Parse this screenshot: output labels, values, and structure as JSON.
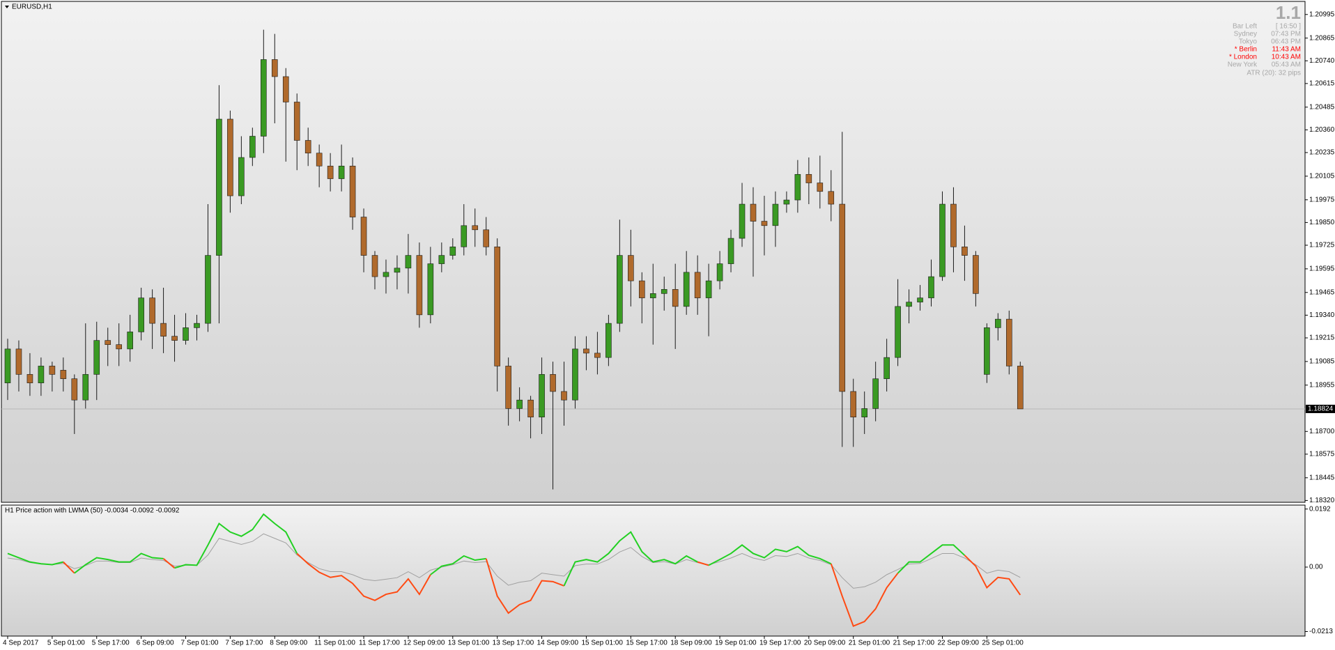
{
  "window": {
    "symbol": "EURUSD,H1",
    "info_panel": {
      "big": "1.1",
      "rows": [
        {
          "label": "Bar Left",
          "value": "[ 16:50 ]",
          "color": "#a8a8a8"
        },
        {
          "label": "Sydney",
          "value": "07:43 PM",
          "color": "#a8a8a8"
        },
        {
          "label": "Tokyo",
          "value": "06:43 PM",
          "color": "#a8a8a8"
        },
        {
          "label": "* Berlin",
          "value": "11:43 AM",
          "color": "#ff0000"
        },
        {
          "label": "* London",
          "value": "10:43 AM",
          "color": "#ff0000"
        },
        {
          "label": "New York",
          "value": "05:43 AM",
          "color": "#a8a8a8"
        }
      ],
      "atr": "ATR (20): 32 pips"
    }
  },
  "chart_data": [
    {
      "type": "candlestick",
      "open": [
        1.18967,
        1.19154,
        1.19014,
        1.18967,
        1.1906,
        1.19037,
        1.1899,
        1.18873,
        1.19014,
        1.19201,
        1.19178,
        1.19154,
        1.19248,
        1.19435,
        1.19295,
        1.19224,
        1.19201,
        1.19271,
        1.19295,
        1.19669,
        1.20419,
        1.19997,
        1.20208,
        1.20325,
        1.20747,
        1.20653,
        1.20513,
        1.20302,
        1.20232,
        1.20161,
        1.20091,
        1.20161,
        1.1988,
        1.19669,
        1.19552,
        1.19576,
        1.19599,
        1.19669,
        1.19342,
        1.19623,
        1.19669,
        1.19716,
        1.19833,
        1.1981,
        1.19716,
        1.1906,
        1.18826,
        1.18873,
        1.18779,
        1.19014,
        1.1892,
        1.18873,
        1.19154,
        1.19131,
        1.19107,
        1.19295,
        1.19669,
        1.19529,
        1.19435,
        1.19459,
        1.19482,
        1.19388,
        1.19576,
        1.19435,
        1.19529,
        1.19623,
        1.19763,
        1.19951,
        1.19857,
        1.19833,
        1.19951,
        1.19974,
        1.20115,
        1.20068,
        1.20021,
        1.19951,
        1.1892,
        1.18779,
        1.18826,
        1.1899,
        1.19107,
        1.19388,
        1.19412,
        1.19435,
        1.19552,
        1.19951,
        1.19716,
        1.19669,
        1.19014,
        1.19271,
        1.19318,
        1.1906
      ],
      "high": [
        1.1921,
        1.19201,
        1.19131,
        1.19107,
        1.19084,
        1.19107,
        1.19014,
        1.19295,
        1.19304,
        1.19271,
        1.19295,
        1.19342,
        1.19491,
        1.19482,
        1.19491,
        1.19342,
        1.19351,
        1.19342,
        1.19951,
        1.20606,
        1.20466,
        1.20325,
        1.20372,
        1.20911,
        1.20888,
        1.207,
        1.2056,
        1.20372,
        1.20279,
        1.20232,
        1.20279,
        1.20208,
        1.19927,
        1.19693,
        1.19646,
        1.19669,
        1.19787,
        1.1974,
        1.19716,
        1.1974,
        1.19763,
        1.19951,
        1.19927,
        1.1988,
        1.19763,
        1.19107,
        1.18943,
        1.18896,
        1.19107,
        1.19084,
        1.19084,
        1.19224,
        1.19224,
        1.19248,
        1.19342,
        1.19866,
        1.1981,
        1.19576,
        1.19623,
        1.19552,
        1.19623,
        1.19693,
        1.19669,
        1.19623,
        1.19693,
        1.1981,
        1.20068,
        1.20044,
        1.19997,
        1.20021,
        1.20021,
        1.20194,
        1.20208,
        1.20218,
        1.20138,
        1.20349,
        1.1899,
        1.1892,
        1.19084,
        1.1921,
        1.19538,
        1.19482,
        1.19506,
        1.19646,
        1.20021,
        1.20044,
        1.19833,
        1.19693,
        1.19295,
        1.19351,
        1.19365,
        1.19084
      ],
      "low": [
        1.18873,
        1.1892,
        1.18896,
        1.18896,
        1.1892,
        1.1892,
        1.18686,
        1.18826,
        1.18873,
        1.1906,
        1.1906,
        1.19084,
        1.19201,
        1.19154,
        1.19131,
        1.19084,
        1.19178,
        1.19201,
        1.19248,
        1.19295,
        1.19904,
        1.19951,
        1.20161,
        1.20232,
        1.20396,
        1.20185,
        1.20138,
        1.20161,
        1.20044,
        1.20021,
        1.20021,
        1.1981,
        1.19576,
        1.19482,
        1.19459,
        1.19482,
        1.19459,
        1.19271,
        1.19295,
        1.19576,
        1.19646,
        1.19669,
        1.19716,
        1.19669,
        1.1892,
        1.18732,
        1.18756,
        1.18662,
        1.18686,
        1.18381,
        1.18732,
        1.18826,
        1.19037,
        1.19014,
        1.1906,
        1.19248,
        1.19388,
        1.19295,
        1.19178,
        1.19365,
        1.19154,
        1.19342,
        1.19342,
        1.19224,
        1.19482,
        1.19576,
        1.19716,
        1.19552,
        1.19669,
        1.19716,
        1.19904,
        1.19904,
        1.19951,
        1.19927,
        1.19857,
        1.18615,
        1.18615,
        1.18686,
        1.18756,
        1.1892,
        1.1906,
        1.19295,
        1.19365,
        1.19388,
        1.19529,
        1.19576,
        1.19529,
        1.19388,
        1.18967,
        1.19201,
        1.19014,
        1.18824
      ],
      "close": [
        1.19154,
        1.19014,
        1.18967,
        1.1906,
        1.19014,
        1.1899,
        1.18873,
        1.19014,
        1.19201,
        1.19178,
        1.19154,
        1.19248,
        1.19435,
        1.19295,
        1.19224,
        1.19201,
        1.19271,
        1.19295,
        1.19669,
        1.20419,
        1.19997,
        1.20208,
        1.20325,
        1.20747,
        1.20653,
        1.20513,
        1.20302,
        1.20232,
        1.20161,
        1.20091,
        1.20161,
        1.1988,
        1.19669,
        1.19552,
        1.19576,
        1.19599,
        1.19669,
        1.19342,
        1.19623,
        1.19669,
        1.19716,
        1.19833,
        1.1981,
        1.19716,
        1.1906,
        1.18826,
        1.18873,
        1.18779,
        1.19014,
        1.1892,
        1.18873,
        1.19154,
        1.19131,
        1.19107,
        1.19295,
        1.19669,
        1.19529,
        1.19435,
        1.19459,
        1.19482,
        1.19388,
        1.19576,
        1.19435,
        1.19529,
        1.19623,
        1.19763,
        1.19951,
        1.19857,
        1.19833,
        1.19951,
        1.19974,
        1.20115,
        1.20068,
        1.20021,
        1.19951,
        1.1892,
        1.18779,
        1.18826,
        1.1899,
        1.19107,
        1.19388,
        1.19412,
        1.19435,
        1.19552,
        1.19951,
        1.19716,
        1.19669,
        1.19459,
        1.19271,
        1.19318,
        1.1906,
        1.18824
      ],
      "up_color": "#3a9a23",
      "down_color": "#b06a2c",
      "wick_color": "#1a1a1a",
      "ylim": [
        1.1831,
        1.21067
      ],
      "yticks": [
        1.20995,
        1.20865,
        {
          "value": 1.2074,
          "label": "1.20740"
        },
        1.20615,
        1.20485,
        {
          "value": 1.2036,
          "label": "1.20360"
        },
        1.20235,
        1.20105,
        1.19975,
        {
          "value": 1.1985,
          "label": "1.19850"
        },
        1.19725,
        1.19595,
        1.19465,
        {
          "value": 1.1934,
          "label": "1.19340"
        },
        1.19215,
        1.19085,
        1.18955,
        {
          "value": 1.187,
          "label": "1.18700"
        },
        1.18575,
        1.18445,
        {
          "value": 1.1832,
          "label": "1.18320"
        }
      ],
      "last_price": 1.18824
    },
    {
      "type": "line",
      "title": "H1 Price action with LWMA (50) -0.0034 -0.0092 -0.0092",
      "categories": [
        "4 Sep 2017",
        null,
        null,
        null,
        "5 Sep 01:00",
        null,
        null,
        null,
        "5 Sep 17:00",
        null,
        null,
        null,
        "6 Sep 09:00",
        null,
        null,
        null,
        "7 Sep 01:00",
        null,
        null,
        null,
        "7 Sep 17:00",
        null,
        null,
        null,
        "8 Sep 09:00",
        null,
        null,
        null,
        "11 Sep 01:00",
        null,
        null,
        null,
        "11 Sep 17:00",
        null,
        null,
        null,
        "12 Sep 09:00",
        null,
        null,
        null,
        "13 Sep 01:00",
        null,
        null,
        null,
        "13 Sep 17:00",
        null,
        null,
        null,
        "14 Sep 09:00",
        null,
        null,
        null,
        "15 Sep 01:00",
        null,
        null,
        null,
        "15 Sep 17:00",
        null,
        null,
        null,
        "18 Sep 09:00",
        null,
        null,
        null,
        "19 Sep 01:00",
        null,
        null,
        null,
        "19 Sep 17:00",
        null,
        null,
        null,
        "20 Sep 09:00",
        null,
        null,
        null,
        "21 Sep 01:00",
        null,
        null,
        null,
        "21 Sep 17:00",
        null,
        null,
        null,
        "22 Sep 09:00",
        null,
        null,
        null,
        "25 Sep 01:00",
        null,
        null,
        null
      ],
      "series": [
        {
          "color": "#22d022",
          "values": [
            0.0045,
            0.0031,
            0.0017,
            0.0011,
            0.0008,
            0.0017,
            -0.002,
            0.0008,
            0.0031,
            0.0025,
            0.0017,
            0.0017,
            0.0045,
            0.0031,
            0.0028,
            -0.0003,
            0.0008,
            0.0006,
            0.0073,
            0.0144,
            0.0116,
            0.0102,
            0.0124,
            0.0175,
            0.0144,
            0.0116,
            0.0045,
            0.0011,
            -0.0017,
            -0.0034,
            -0.0028,
            -0.0054,
            -0.0096,
            -0.011,
            -0.009,
            -0.0082,
            -0.0039,
            -0.009,
            -0.0025,
            0.0003,
            0.0011,
            0.0037,
            0.0023,
            0.0028,
            -0.0096,
            -0.0152,
            -0.0124,
            -0.011,
            -0.0045,
            -0.0048,
            -0.0062,
            0.0017,
            0.0025,
            0.0017,
            0.0045,
            0.0087,
            0.0116,
            0.0051,
            0.0017,
            0.0025,
            0.0011,
            0.0037,
            0.0017,
            0.0006,
            0.0025,
            0.0045,
            0.0073,
            0.0045,
            0.0031,
            0.0059,
            0.0051,
            0.0068,
            0.0039,
            0.0028,
            0.0011,
            -0.0096,
            -0.0195,
            -0.018,
            -0.0138,
            -0.0068,
            -0.002,
            0.0017,
            0.0017,
            0.0045,
            0.0073,
            0.0073,
            0.0039,
            0.0003,
            -0.0068,
            -0.0034,
            -0.0039,
            -0.0092
          ]
        },
        {
          "color": "#a0a0a0",
          "values": [
            0.003,
            0.0025,
            0.0015,
            0.001,
            0.0008,
            0.0012,
            -0.0005,
            0.0005,
            0.002,
            0.002,
            0.0015,
            0.0015,
            0.003,
            0.0025,
            0.0022,
            0.0003,
            0.0006,
            0.0006,
            0.004,
            0.0095,
            0.0085,
            0.0075,
            0.0085,
            0.011,
            0.0095,
            0.008,
            0.004,
            0.0015,
            -0.0005,
            -0.0015,
            -0.0015,
            -0.0025,
            -0.004,
            -0.0045,
            -0.004,
            -0.0035,
            -0.0015,
            -0.0035,
            -0.001,
            0,
            0.0008,
            0.002,
            0.0015,
            0.0018,
            -0.003,
            -0.006,
            -0.005,
            -0.0045,
            -0.002,
            -0.0025,
            -0.003,
            0.0005,
            0.001,
            0.001,
            0.0025,
            0.005,
            0.0065,
            0.0035,
            0.0015,
            0.0018,
            0.001,
            0.0025,
            0.0015,
            0.0008,
            0.0018,
            0.003,
            0.0045,
            0.003,
            0.0022,
            0.0038,
            0.0035,
            0.0045,
            0.003,
            0.0022,
            0.0008,
            -0.0035,
            -0.007,
            -0.0065,
            -0.005,
            -0.0025,
            -0.0008,
            0.001,
            0.0012,
            0.0028,
            0.0045,
            0.0045,
            0.003,
            0.0008,
            -0.002,
            -0.001,
            -0.0015,
            -0.0034
          ]
        }
      ],
      "down_color": "#ff4a12",
      "ylim": [
        -0.0228,
        0.0205
      ],
      "yticks": [
        0.0192,
        {
          "value": 0,
          "label": "0.00"
        },
        -0.0213
      ]
    }
  ]
}
